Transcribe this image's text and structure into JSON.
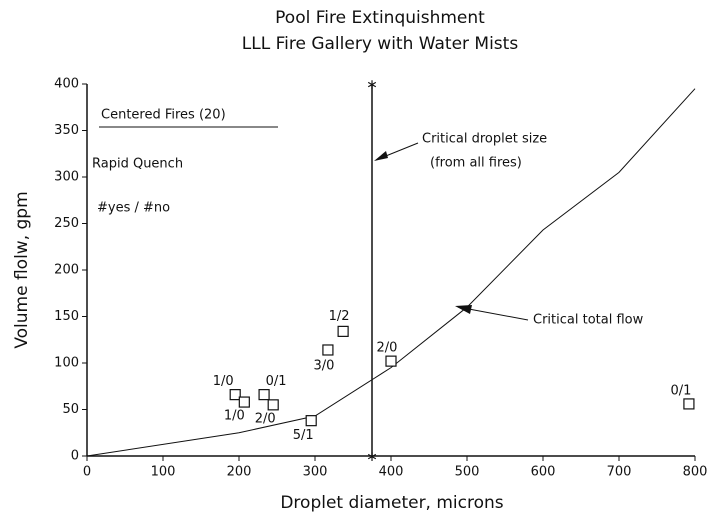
{
  "chart_data": {
    "type": "scatter",
    "title": "Pool Fire Extinquishment",
    "subtitle": "LLL Fire Gallery with Water Mists",
    "x_label": "Droplet diameter,  microns",
    "y_label": "Volume flolw,  gpm",
    "xlim": [
      0,
      800
    ],
    "ylim": [
      0,
      400
    ],
    "xticks": [
      0,
      100,
      200,
      300,
      400,
      500,
      600,
      700,
      800
    ],
    "yticks": [
      0,
      50,
      100,
      150,
      200,
      250,
      300,
      350,
      400
    ],
    "points": {
      "x": [
        195,
        233,
        207,
        245,
        295,
        317,
        337,
        400,
        792
      ],
      "values": [
        66,
        66,
        58,
        55,
        38,
        114,
        134,
        102,
        56
      ],
      "labels": [
        "1/0",
        "0/1",
        "1/0",
        "2/0",
        "5/1",
        "3/0",
        "1/2",
        "2/0",
        "0/1"
      ]
    },
    "curve": {
      "name": "Critical total flow",
      "x": [
        0,
        200,
        300,
        375,
        400,
        500,
        600,
        700,
        800
      ],
      "values": [
        0,
        25,
        43,
        82,
        95,
        160,
        243,
        305,
        395
      ]
    },
    "critical_droplet": {
      "name": "Critical droplet size",
      "note": "(from all fires)",
      "x": 375
    },
    "annotations": [
      "Centered Fires (20)",
      "Rapid Quench",
      "#yes / #no"
    ],
    "color": "#111111"
  }
}
